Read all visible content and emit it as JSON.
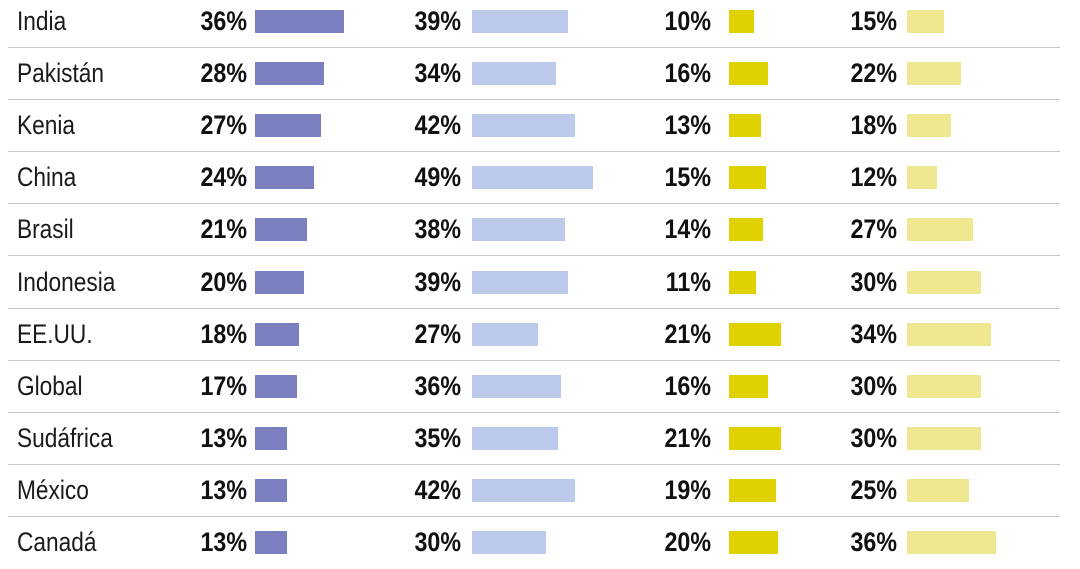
{
  "chart_data": {
    "type": "bar",
    "categories": [
      "India",
      "Pakistán",
      "Kenia",
      "China",
      "Brasil",
      "Indonesia",
      "EE.UU.",
      "Global",
      "Sudáfrica",
      "México",
      "Canadá"
    ],
    "series": [
      {
        "values": [
          36,
          28,
          27,
          24,
          21,
          20,
          18,
          17,
          13,
          13,
          13
        ],
        "color": "#7a80c0"
      },
      {
        "values": [
          39,
          34,
          42,
          49,
          38,
          39,
          27,
          36,
          35,
          42,
          30
        ],
        "color": "#bccbeb"
      },
      {
        "values": [
          10,
          16,
          13,
          15,
          14,
          11,
          21,
          16,
          21,
          19,
          20
        ],
        "color": "#e0d200"
      },
      {
        "values": [
          15,
          22,
          18,
          12,
          27,
          30,
          34,
          30,
          30,
          25,
          36
        ],
        "color": "#f0e890"
      }
    ],
    "value_format": "{v}%",
    "title": "",
    "xlabel": "",
    "ylabel": "",
    "legend": "none",
    "grid": "horizontal row separators"
  }
}
